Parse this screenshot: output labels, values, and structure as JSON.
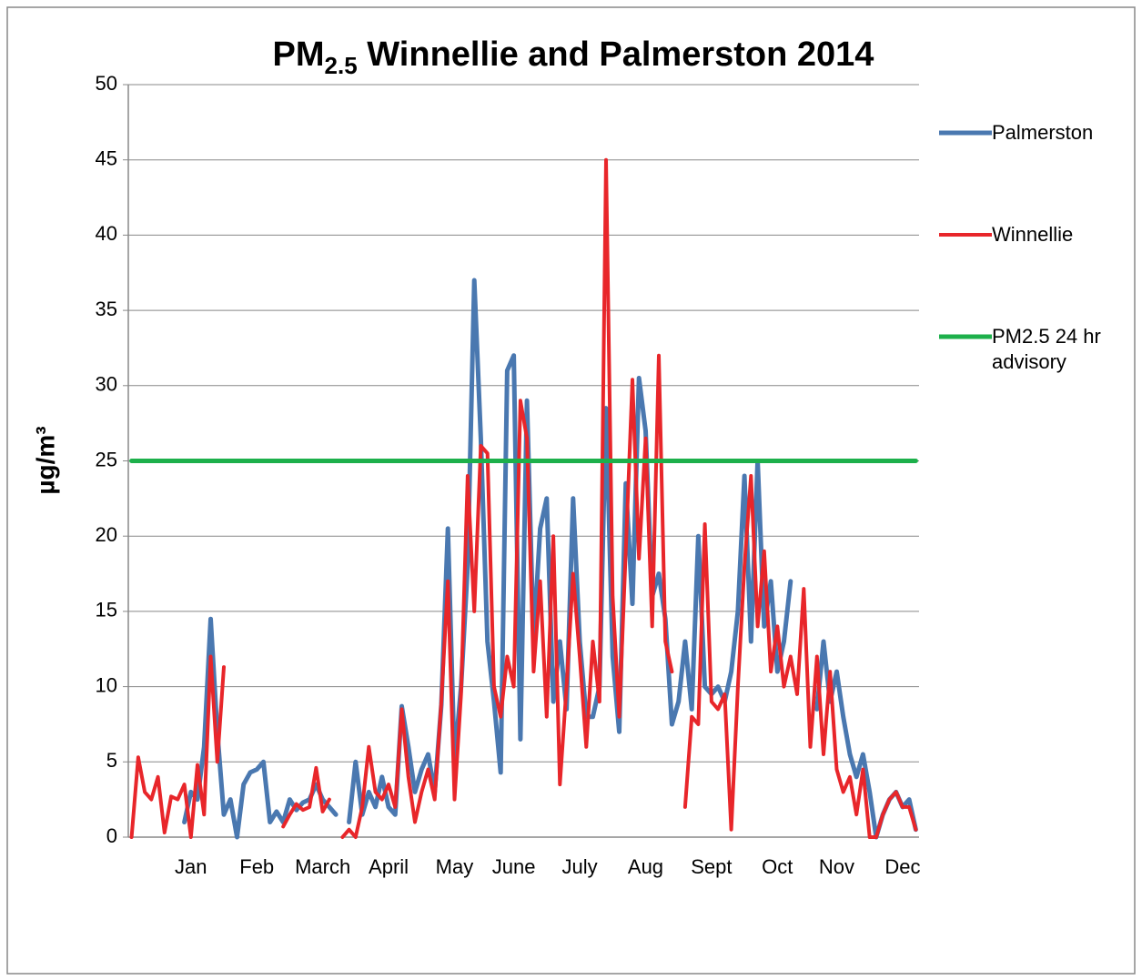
{
  "chart_data": {
    "type": "line",
    "title": [
      "PM",
      "2.5",
      " Winnellie and Palmerston 2014"
    ],
    "ylabel": "µg/m³",
    "categories": [
      null,
      null,
      null,
      null,
      null,
      null,
      null,
      null,
      null,
      "Jan",
      null,
      null,
      null,
      null,
      null,
      null,
      null,
      null,
      null,
      "Feb",
      null,
      null,
      null,
      null,
      null,
      null,
      null,
      null,
      null,
      "March",
      null,
      null,
      null,
      null,
      null,
      null,
      null,
      null,
      null,
      "April",
      null,
      null,
      null,
      null,
      null,
      null,
      null,
      null,
      null,
      "May",
      null,
      null,
      null,
      null,
      null,
      null,
      null,
      null,
      "June",
      null,
      null,
      null,
      null,
      null,
      null,
      null,
      null,
      null,
      "July",
      null,
      null,
      null,
      null,
      null,
      null,
      null,
      null,
      null,
      "Aug",
      null,
      null,
      null,
      null,
      null,
      null,
      null,
      null,
      null,
      "Sept",
      null,
      null,
      null,
      null,
      null,
      null,
      null,
      null,
      null,
      "Oct",
      null,
      null,
      null,
      null,
      null,
      null,
      null,
      null,
      "Nov",
      null,
      null,
      null,
      null,
      null,
      null,
      null,
      null,
      null,
      "Dec",
      null,
      null
    ],
    "series": [
      {
        "name": "Palmerston",
        "color": "#4a78b0",
        "values": [
          0,
          null,
          null,
          null,
          null,
          null,
          null,
          null,
          1,
          3,
          2.5,
          6,
          14.5,
          7,
          1.5,
          2.5,
          0,
          3.5,
          4.3,
          4.5,
          5,
          1,
          1.7,
          1,
          2.5,
          1.8,
          2.3,
          2.5,
          3.5,
          2.5,
          2,
          1.5,
          null,
          1,
          5,
          1.5,
          3,
          2,
          4,
          2,
          1.5,
          8.7,
          6,
          3,
          4.5,
          5.5,
          3,
          8.8,
          20.5,
          5,
          10,
          18,
          37,
          26.5,
          13,
          9,
          4.3,
          31,
          32,
          6.5,
          29,
          13,
          20.5,
          22.5,
          9,
          13,
          8.5,
          22.5,
          13,
          8,
          8,
          10,
          28.5,
          12,
          7,
          23.5,
          15.5,
          30.5,
          27,
          16,
          17.5,
          14.5,
          7.5,
          9,
          13,
          8.5,
          20,
          10,
          9.5,
          10,
          9,
          11,
          15,
          24,
          13,
          25,
          14,
          17,
          11,
          13,
          17,
          null,
          null,
          null,
          8.5,
          13,
          9,
          11,
          8,
          5.5,
          4,
          5.5,
          3,
          0,
          1.5,
          2.5,
          3,
          2,
          2.5,
          0.5
        ]
      },
      {
        "name": "Winnellie",
        "color": "#e8262a",
        "values": [
          0,
          5.3,
          3,
          2.5,
          4,
          0.3,
          2.7,
          2.5,
          3.5,
          0,
          4.8,
          1.5,
          12,
          5,
          11.3,
          null,
          null,
          null,
          null,
          null,
          null,
          null,
          null,
          0.7,
          1.5,
          2.2,
          1.8,
          2,
          4.6,
          1.7,
          2.5,
          null,
          0,
          0.5,
          0,
          2,
          6,
          3,
          2.5,
          3.5,
          2,
          8.5,
          4,
          1,
          3,
          4.5,
          2.5,
          9,
          17,
          2.5,
          9.5,
          24,
          15,
          26,
          25.5,
          10,
          8,
          12,
          10,
          29,
          26.5,
          11,
          17,
          8,
          20,
          3.5,
          10,
          17.5,
          12,
          6,
          13,
          9,
          45,
          16,
          8,
          19,
          30.4,
          18.5,
          26.5,
          14,
          32,
          13,
          11,
          null,
          2,
          8,
          7.5,
          20.8,
          9,
          8.5,
          9.5,
          0.5,
          10,
          18,
          24,
          14,
          19,
          11,
          14,
          10,
          12,
          9.5,
          16.5,
          6,
          12,
          5.5,
          11,
          4.5,
          3,
          4,
          1.5,
          4.5,
          0,
          0,
          1.5,
          2.5,
          3,
          2,
          2,
          0.5
        ]
      },
      {
        "name": "PM2.5 24 hr advisory",
        "color": "#1db04b",
        "values": [
          25,
          25,
          25,
          25,
          25,
          25,
          25,
          25,
          25,
          25,
          25,
          25,
          25,
          25,
          25,
          25,
          25,
          25,
          25,
          25,
          25,
          25,
          25,
          25,
          25,
          25,
          25,
          25,
          25,
          25,
          25,
          25,
          25,
          25,
          25,
          25,
          25,
          25,
          25,
          25,
          25,
          25,
          25,
          25,
          25,
          25,
          25,
          25,
          25,
          25,
          25,
          25,
          25,
          25,
          25,
          25,
          25,
          25,
          25,
          25,
          25,
          25,
          25,
          25,
          25,
          25,
          25,
          25,
          25,
          25,
          25,
          25,
          25,
          25,
          25,
          25,
          25,
          25,
          25,
          25,
          25,
          25,
          25,
          25,
          25,
          25,
          25,
          25,
          25,
          25,
          25,
          25,
          25,
          25,
          25,
          25,
          25,
          25,
          25,
          25,
          25,
          25,
          25,
          25,
          25,
          25,
          25,
          25,
          25,
          25,
          25,
          25,
          25,
          25,
          25,
          25,
          25,
          25,
          25,
          25
        ]
      }
    ],
    "ylim": [
      0,
      50
    ],
    "yticks": [
      0,
      5,
      10,
      15,
      20,
      25,
      30,
      35,
      40,
      45,
      50
    ],
    "grid": true,
    "legend": "right"
  }
}
